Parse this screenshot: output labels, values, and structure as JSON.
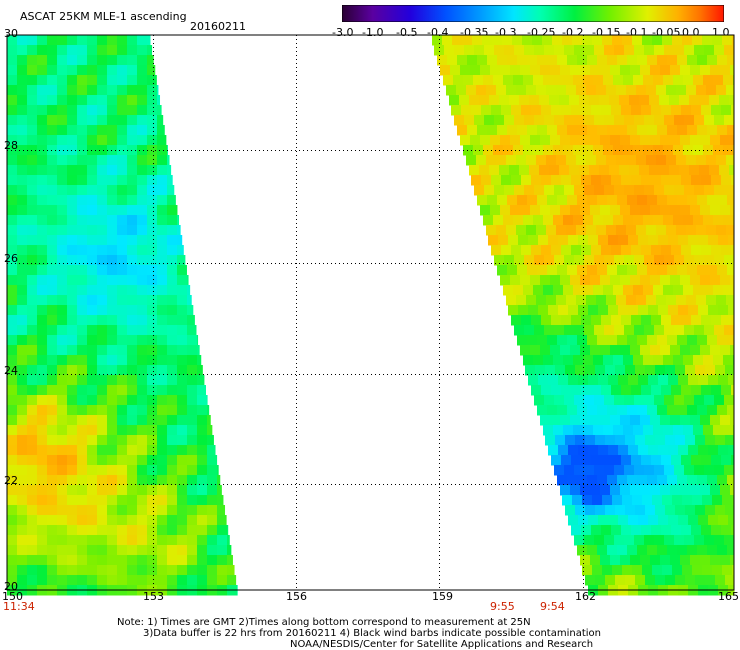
{
  "header": {
    "title": "ASCAT 25KM MLE-1 ascending",
    "date": "20160211"
  },
  "colorbar": {
    "tick_labels": [
      "-3.0",
      "-1.0",
      "-0.5",
      "-0.4",
      "-0.35",
      "-0.3",
      "-0.25",
      "-0.2",
      "-0.15",
      "-0.1",
      "-0.05",
      "0.0",
      "1.0"
    ],
    "colors": [
      "#2a0033",
      "#5a00a0",
      "#2200dd",
      "#0050ff",
      "#0098ff",
      "#00e5ff",
      "#00ffb0",
      "#00f040",
      "#70f000",
      "#e0f000",
      "#ffb000",
      "#ff7000",
      "#ff1500"
    ]
  },
  "map": {
    "lat_labels": [
      "30",
      "28",
      "26",
      "24",
      "22",
      "20"
    ],
    "lon_labels": [
      "150",
      "153",
      "156",
      "159",
      "162",
      "165"
    ],
    "time_labels": [
      "11:34",
      "9:55",
      "9:54"
    ]
  },
  "notes": {
    "line1": "Note: 1) Times are GMT 2)Times along bottom correspond to measurement at 25N",
    "line2": "3)Data buffer is 22 hrs from 20160211 4) Black wind barbs indicate possible contamination",
    "line3": "NOAA/NESDIS/Center for Satellite Applications and Research"
  }
}
